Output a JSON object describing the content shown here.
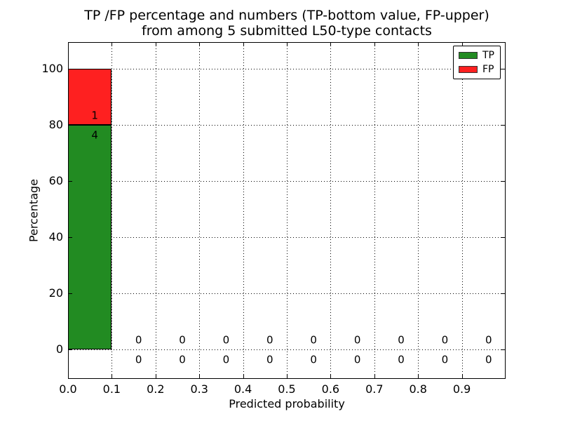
{
  "chart_data": {
    "type": "bar",
    "subtype": "stacked-percentage-histogram",
    "title_line1": "TP /FP percentage and numbers (TP-bottom value, FP-upper)",
    "title_line2": "from among 5 submitted L50-type contacts",
    "xlabel": "Predicted probability",
    "ylabel": "Percentage",
    "xlim": [
      0.0,
      1.0
    ],
    "ylim": [
      -10.6,
      109.4
    ],
    "xtick_labels": [
      "0.0",
      "0.1",
      "0.2",
      "0.3",
      "0.4",
      "0.5",
      "0.6",
      "0.7",
      "0.8",
      "0.9"
    ],
    "xtick_values": [
      0.0,
      0.1,
      0.2,
      0.3,
      0.4,
      0.5,
      0.6,
      0.7,
      0.8,
      0.9
    ],
    "ytick_labels": [
      "0",
      "20",
      "40",
      "60",
      "80",
      "100"
    ],
    "ytick_values": [
      0,
      20,
      40,
      60,
      80,
      100
    ],
    "grid": "dotted",
    "legend_position": "upper-right",
    "bin_edges": [
      0.0,
      0.1,
      0.2,
      0.3,
      0.4,
      0.5,
      0.6,
      0.7,
      0.8,
      0.9,
      1.0
    ],
    "series": [
      {
        "name": "TP",
        "color": "#228b22",
        "values_pct": [
          80,
          0,
          0,
          0,
          0,
          0,
          0,
          0,
          0,
          0
        ],
        "counts": [
          4,
          0,
          0,
          0,
          0,
          0,
          0,
          0,
          0,
          0
        ]
      },
      {
        "name": "FP",
        "color": "#fe2020",
        "values_pct": [
          20,
          0,
          0,
          0,
          0,
          0,
          0,
          0,
          0,
          0
        ],
        "counts": [
          1,
          0,
          0,
          0,
          0,
          0,
          0,
          0,
          0,
          0
        ]
      }
    ]
  }
}
